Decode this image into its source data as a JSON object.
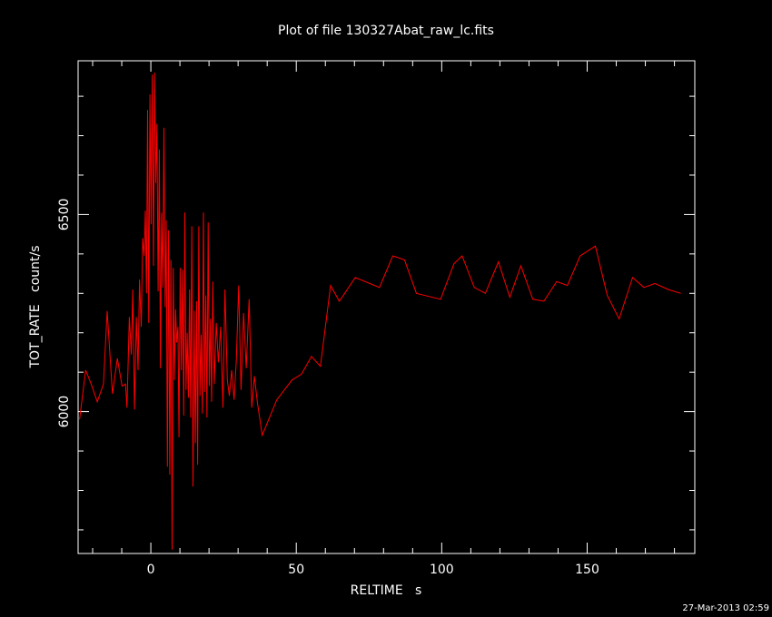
{
  "chart_data": {
    "type": "line",
    "title": "Plot of file 130327Abat_raw_lc.fits",
    "xlabel": "RELTIME   s",
    "ylabel": "TOT_RATE   count/s",
    "xlim": [
      -25,
      187
    ],
    "ylim": [
      5640,
      6890
    ],
    "xticks": [
      {
        "value": 0,
        "label": "0"
      },
      {
        "value": 50,
        "label": "50"
      },
      {
        "value": 100,
        "label": "100"
      },
      {
        "value": 150,
        "label": "150"
      }
    ],
    "yticks": [
      {
        "value": 6000,
        "label": "6000"
      },
      {
        "value": 6500,
        "label": "6500"
      }
    ],
    "timestamp": "27-Mar-2013 02:59",
    "colors": {
      "background": "#000000",
      "axes": "#ffffff",
      "series": "#ff0000"
    },
    "series": [
      {
        "color": "#ff0000",
        "x": [
          -24.5,
          -22.4,
          -20.5,
          -18.4,
          -16.3,
          -15.0,
          -13.2,
          -11.5,
          -9.9,
          -8.7,
          -8.2,
          -7.4,
          -6.7,
          -6.2,
          -5.6,
          -5.0,
          -4.4,
          -3.9,
          -3.3,
          -2.8,
          -2.3,
          -1.9,
          -1.5,
          -1.1,
          -0.7,
          -0.3,
          0.1,
          0.5,
          0.9,
          1.3,
          1.7,
          2.1,
          2.5,
          2.9,
          3.3,
          3.7,
          4.1,
          4.5,
          4.9,
          5.3,
          5.7,
          6.1,
          6.5,
          6.9,
          7.3,
          7.7,
          8.1,
          8.5,
          8.9,
          9.3,
          9.7,
          10.1,
          10.5,
          10.9,
          11.3,
          11.7,
          12.1,
          12.5,
          12.9,
          13.3,
          13.7,
          14.1,
          14.5,
          14.9,
          15.3,
          15.7,
          16.1,
          16.5,
          16.9,
          17.3,
          17.7,
          18.1,
          18.5,
          18.9,
          19.3,
          19.7,
          20.1,
          20.5,
          20.9,
          21.3,
          21.8,
          22.5,
          23.2,
          24.0,
          24.8,
          25.5,
          26.3,
          27.0,
          27.8,
          28.6,
          29.4,
          30.2,
          31.0,
          31.9,
          32.8,
          33.8,
          34.7,
          35.6,
          36.6,
          38.3,
          43.3,
          48.5,
          51.8,
          55.2,
          58.3,
          61.8,
          64.8,
          70.3,
          78.6,
          83.2,
          87.2,
          91.3,
          99.6,
          104.2,
          107.0,
          111.2,
          115.0,
          119.5,
          123.4,
          127.2,
          131.3,
          135.1,
          139.5,
          143.2,
          147.6,
          152.8,
          156.9,
          161.0,
          165.6,
          169.5,
          173.3,
          177.8,
          182.2
        ],
        "y": [
          5980,
          6105,
          6070,
          6025,
          6070,
          6255,
          6045,
          6135,
          6065,
          6070,
          6010,
          6240,
          6145,
          6310,
          6005,
          6240,
          6105,
          6335,
          6215,
          6440,
          6395,
          6510,
          6300,
          6765,
          6225,
          6805,
          6475,
          6855,
          6370,
          6860,
          6580,
          6730,
          6305,
          6665,
          6110,
          6505,
          6315,
          6720,
          6265,
          6485,
          5860,
          6460,
          5840,
          6385,
          5650,
          6365,
          6080,
          6260,
          6175,
          6215,
          5935,
          6365,
          6105,
          6360,
          5990,
          6505,
          6055,
          6200,
          6035,
          6310,
          5985,
          6470,
          5810,
          6255,
          5920,
          6280,
          5865,
          6470,
          6040,
          6195,
          5995,
          6505,
          6050,
          6295,
          5985,
          6480,
          6065,
          6235,
          6025,
          6330,
          6070,
          6225,
          6125,
          6215,
          6010,
          6310,
          6080,
          6040,
          6105,
          6030,
          6130,
          6320,
          6055,
          6250,
          6110,
          6285,
          6010,
          6090,
          6025,
          5940,
          6030,
          6080,
          6095,
          6140,
          6115,
          6320,
          6280,
          6340,
          6315,
          6395,
          6385,
          6300,
          6285,
          6375,
          6395,
          6315,
          6300,
          6380,
          6290,
          6370,
          6285,
          6280,
          6330,
          6320,
          6395,
          6420,
          6295,
          6235,
          6340,
          6315,
          6325,
          6310,
          6300
        ]
      }
    ]
  }
}
